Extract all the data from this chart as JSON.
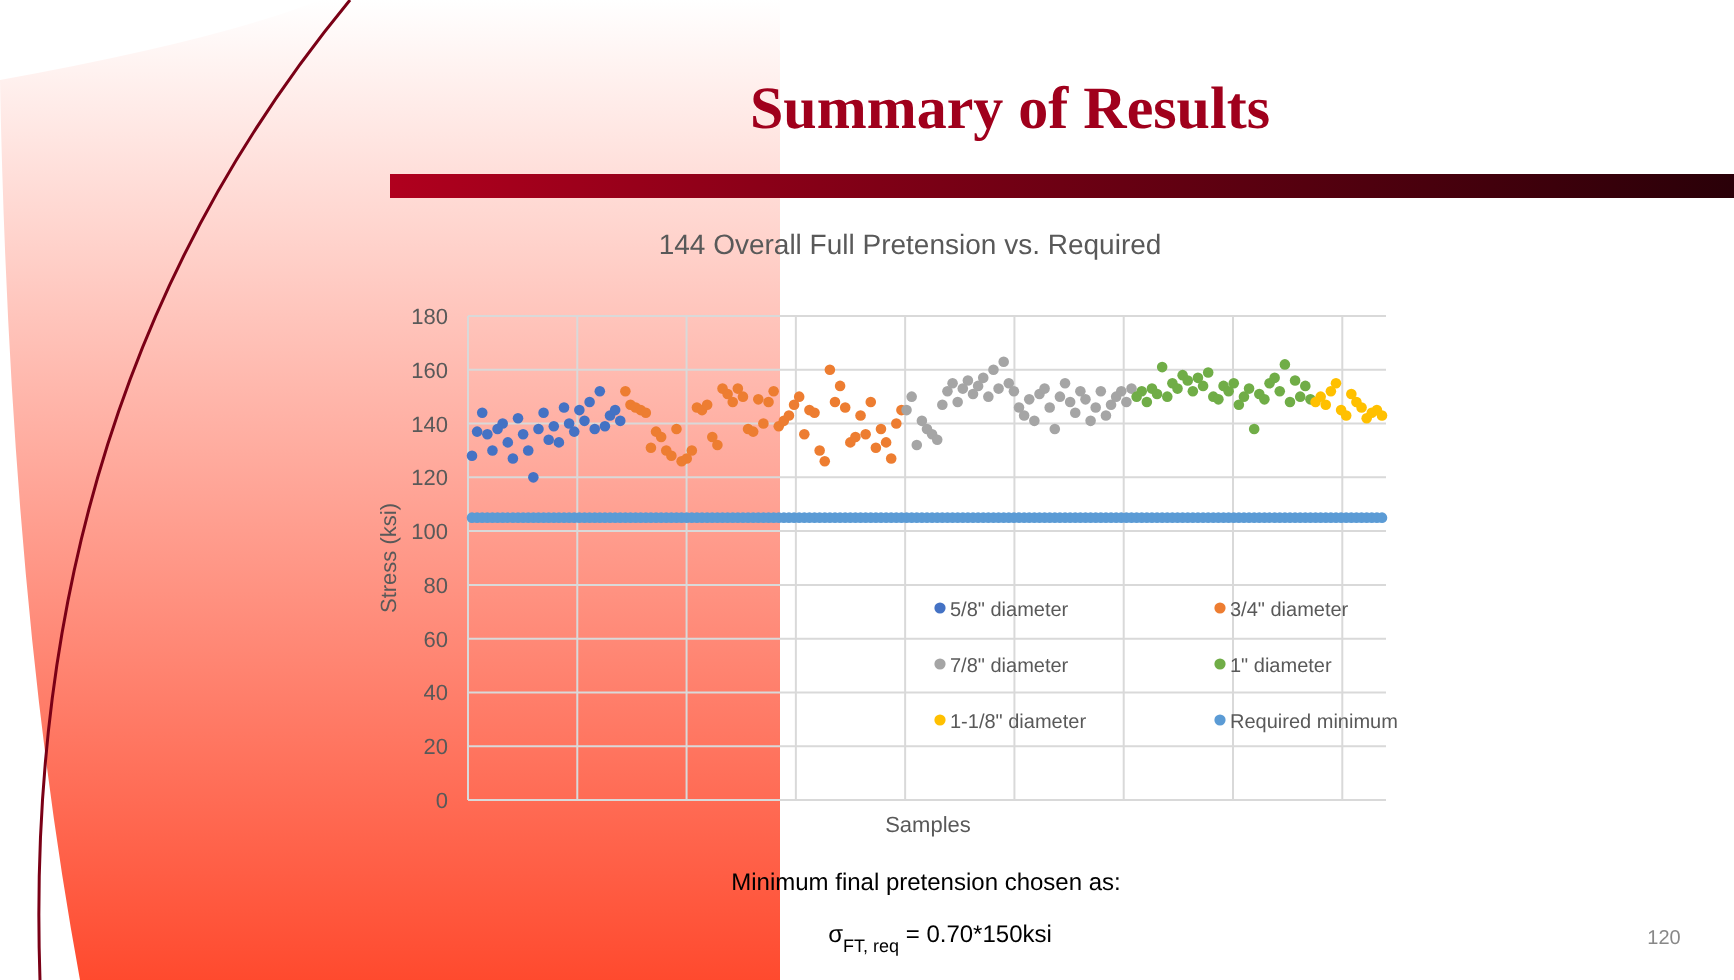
{
  "chart_data": {
    "type": "scatter",
    "title": "Summary of Results",
    "subtitle": "144 Overall Full Pretension vs. Required",
    "xlabel": "Samples",
    "ylabel": "Stress (ksi)",
    "annotations": [
      "Minimum final pretension chosen as:",
      "σ$_{FT, req}$ = 0.70*150ksi",
      "120"
    ],
    "categories": [
      null,
      null,
      null,
      null,
      null,
      null,
      null,
      null,
      null,
      null,
      null,
      null,
      null,
      null,
      null,
      null,
      null,
      null,
      null,
      null,
      null,
      null,
      null,
      null,
      null,
      null,
      null,
      null,
      null,
      null,
      null,
      null,
      null,
      null,
      null,
      null,
      null,
      null,
      null,
      null,
      null,
      null,
      null,
      null,
      null,
      null,
      null,
      null,
      null,
      null,
      null,
      null,
      null,
      null,
      null,
      null,
      null,
      null,
      null,
      null,
      null,
      null,
      null,
      null,
      null,
      null,
      null,
      null,
      null,
      null,
      null,
      null,
      null,
      null,
      null,
      null,
      null,
      null,
      null,
      null,
      null,
      null,
      null,
      null,
      null,
      null,
      null,
      null,
      null,
      null,
      null,
      null,
      null,
      null,
      null,
      null,
      null,
      null,
      null,
      null,
      null,
      null,
      null,
      null,
      null,
      null,
      null,
      null,
      null,
      null,
      null,
      null,
      null,
      null,
      null,
      null,
      null,
      null,
      null,
      null,
      null,
      null,
      null,
      null,
      null,
      null,
      null,
      null,
      null,
      null,
      null,
      null,
      null,
      null,
      null,
      null,
      null,
      null,
      null,
      null,
      null,
      null,
      null,
      null,
      null,
      null,
      null,
      null,
      null,
      null,
      null,
      null,
      null,
      null,
      null,
      null,
      null,
      null,
      null,
      null,
      null,
      null,
      null,
      null,
      null,
      null,
      null,
      null,
      null,
      null,
      null,
      null,
      null,
      null,
      null,
      null,
      null,
      null,
      null
    ],
    "ylim": [
      0,
      180
    ],
    "yticks": [
      0,
      20,
      40,
      60,
      80,
      100,
      120,
      140,
      160,
      180
    ],
    "grid": true,
    "legend": "bottom right",
    "marker": "circle",
    "tick_labels": "y",
    "series": [
      {
        "name": "5/8\" diameter",
        "color": "#4472c4",
        "values": [
          128,
          137,
          144,
          136,
          130,
          138,
          140,
          133,
          127,
          142,
          136,
          130,
          120,
          138,
          144,
          134,
          139,
          133,
          146,
          140,
          137,
          145,
          141,
          148,
          138,
          152,
          139,
          143,
          145,
          141,
          null,
          null,
          null,
          null,
          null,
          null,
          null,
          null,
          null,
          null,
          null,
          null,
          null,
          null,
          null,
          null,
          null,
          null,
          null,
          null,
          null,
          null,
          null,
          null,
          null,
          null,
          null,
          null,
          null,
          null,
          null,
          null,
          null,
          null,
          null,
          null,
          null,
          null,
          null,
          null,
          null,
          null,
          null,
          null,
          null,
          null,
          null,
          null,
          null,
          null,
          null,
          null,
          null,
          null,
          null,
          null,
          null,
          null,
          null,
          null,
          null,
          null,
          null,
          null,
          null,
          null,
          null,
          null,
          null,
          null,
          null,
          null,
          null,
          null,
          null,
          null,
          null,
          null,
          null,
          null,
          null,
          null,
          null,
          null,
          null,
          null,
          null,
          null,
          null,
          null,
          null,
          null,
          null,
          null,
          null,
          null,
          null,
          null,
          null,
          null,
          null,
          null,
          null,
          null,
          null,
          null,
          null,
          null,
          null,
          null,
          null,
          null,
          null,
          null,
          null,
          null,
          null,
          null,
          null,
          null,
          null,
          null,
          null,
          null,
          null,
          null,
          null,
          null,
          null,
          null,
          null,
          null,
          null,
          null,
          null,
          null,
          null,
          null,
          null,
          null,
          null,
          null,
          null,
          null,
          null,
          null,
          null,
          null,
          null
        ]
      },
      {
        "name": "3/4\" diameter",
        "color": "#ed7d31",
        "values": [
          null,
          null,
          null,
          null,
          null,
          null,
          null,
          null,
          null,
          null,
          null,
          null,
          null,
          null,
          null,
          null,
          null,
          null,
          null,
          null,
          null,
          null,
          null,
          null,
          null,
          null,
          null,
          null,
          null,
          null,
          152,
          147,
          146,
          145,
          144,
          131,
          137,
          135,
          130,
          128,
          138,
          126,
          127,
          130,
          146,
          145,
          147,
          135,
          132,
          153,
          151,
          148,
          153,
          150,
          138,
          137,
          149,
          140,
          148,
          152,
          139,
          141,
          143,
          147,
          150,
          136,
          145,
          144,
          130,
          126,
          160,
          148,
          154,
          146,
          133,
          135,
          143,
          136,
          148,
          131,
          138,
          133,
          127,
          140,
          145,
          null,
          null,
          null,
          null,
          null,
          null,
          null,
          null,
          null,
          null,
          null,
          null,
          null,
          null,
          null,
          null,
          null,
          null,
          null,
          null,
          null,
          null,
          null,
          null,
          null,
          null,
          null,
          null,
          null,
          null,
          null,
          null,
          null,
          null,
          null,
          null,
          null,
          null,
          null,
          null,
          null,
          null,
          null,
          null,
          null,
          null,
          null,
          null,
          null,
          null,
          null,
          null,
          null,
          null,
          null,
          null,
          null,
          null,
          null,
          null,
          null,
          null,
          null,
          null,
          null,
          null,
          null,
          null,
          null,
          null,
          null,
          null,
          null,
          null,
          null,
          null,
          null,
          null,
          null,
          null,
          null,
          null,
          null,
          null,
          null,
          null,
          null,
          null,
          null,
          null,
          null,
          null,
          null,
          null
        ]
      },
      {
        "name": "7/8\" diameter",
        "color": "#a5a5a5",
        "values": [
          null,
          null,
          null,
          null,
          null,
          null,
          null,
          null,
          null,
          null,
          null,
          null,
          null,
          null,
          null,
          null,
          null,
          null,
          null,
          null,
          null,
          null,
          null,
          null,
          null,
          null,
          null,
          null,
          null,
          null,
          null,
          null,
          null,
          null,
          null,
          null,
          null,
          null,
          null,
          null,
          null,
          null,
          null,
          null,
          null,
          null,
          null,
          null,
          null,
          null,
          null,
          null,
          null,
          null,
          null,
          null,
          null,
          null,
          null,
          null,
          null,
          null,
          null,
          null,
          null,
          null,
          null,
          null,
          null,
          null,
          null,
          null,
          null,
          null,
          null,
          null,
          null,
          null,
          null,
          null,
          null,
          null,
          null,
          null,
          null,
          145,
          150,
          132,
          141,
          138,
          136,
          134,
          147,
          152,
          155,
          148,
          153,
          156,
          151,
          154,
          157,
          150,
          160,
          153,
          163,
          155,
          152,
          146,
          143,
          149,
          141,
          151,
          153,
          146,
          138,
          150,
          155,
          148,
          144,
          152,
          149,
          141,
          146,
          152,
          143,
          147,
          150,
          152,
          148,
          153,
          null,
          null,
          null,
          null,
          null,
          null,
          null,
          null,
          null,
          null,
          null,
          null,
          null,
          null,
          null,
          null,
          null,
          null,
          null,
          null,
          null,
          null,
          null,
          null,
          null,
          null,
          null,
          null,
          null,
          null,
          null,
          null,
          null,
          null,
          null,
          null,
          null,
          null,
          null,
          null,
          null,
          null,
          null,
          null,
          null,
          null,
          null,
          null,
          null
        ]
      },
      {
        "name": "1\" diameter",
        "color": "#70ad47",
        "values": [
          null,
          null,
          null,
          null,
          null,
          null,
          null,
          null,
          null,
          null,
          null,
          null,
          null,
          null,
          null,
          null,
          null,
          null,
          null,
          null,
          null,
          null,
          null,
          null,
          null,
          null,
          null,
          null,
          null,
          null,
          null,
          null,
          null,
          null,
          null,
          null,
          null,
          null,
          null,
          null,
          null,
          null,
          null,
          null,
          null,
          null,
          null,
          null,
          null,
          null,
          null,
          null,
          null,
          null,
          null,
          null,
          null,
          null,
          null,
          null,
          null,
          null,
          null,
          null,
          null,
          null,
          null,
          null,
          null,
          null,
          null,
          null,
          null,
          null,
          null,
          null,
          null,
          null,
          null,
          null,
          null,
          null,
          null,
          null,
          null,
          null,
          null,
          null,
          null,
          null,
          null,
          null,
          null,
          null,
          null,
          null,
          null,
          null,
          null,
          null,
          null,
          null,
          null,
          null,
          null,
          null,
          null,
          null,
          null,
          null,
          null,
          null,
          null,
          null,
          null,
          null,
          null,
          null,
          null,
          null,
          null,
          null,
          null,
          null,
          null,
          null,
          null,
          null,
          null,
          null,
          150,
          152,
          148,
          153,
          151,
          161,
          150,
          155,
          153,
          158,
          156,
          152,
          157,
          154,
          159,
          150,
          149,
          154,
          152,
          155,
          147,
          150,
          153,
          138,
          151,
          149,
          155,
          157,
          152,
          162,
          148,
          156,
          150,
          154,
          149,
          null,
          null,
          null,
          null,
          null,
          null,
          null,
          null,
          null,
          null,
          null,
          null,
          null,
          null
        ]
      },
      {
        "name": "1-1/8\" diameter",
        "color": "#ffc000",
        "values": [
          null,
          null,
          null,
          null,
          null,
          null,
          null,
          null,
          null,
          null,
          null,
          null,
          null,
          null,
          null,
          null,
          null,
          null,
          null,
          null,
          null,
          null,
          null,
          null,
          null,
          null,
          null,
          null,
          null,
          null,
          null,
          null,
          null,
          null,
          null,
          null,
          null,
          null,
          null,
          null,
          null,
          null,
          null,
          null,
          null,
          null,
          null,
          null,
          null,
          null,
          null,
          null,
          null,
          null,
          null,
          null,
          null,
          null,
          null,
          null,
          null,
          null,
          null,
          null,
          null,
          null,
          null,
          null,
          null,
          null,
          null,
          null,
          null,
          null,
          null,
          null,
          null,
          null,
          null,
          null,
          null,
          null,
          null,
          null,
          null,
          null,
          null,
          null,
          null,
          null,
          null,
          null,
          null,
          null,
          null,
          null,
          null,
          null,
          null,
          null,
          null,
          null,
          null,
          null,
          null,
          null,
          null,
          null,
          null,
          null,
          null,
          null,
          null,
          null,
          null,
          null,
          null,
          null,
          null,
          null,
          null,
          null,
          null,
          null,
          null,
          null,
          null,
          null,
          null,
          null,
          null,
          null,
          null,
          null,
          null,
          null,
          null,
          null,
          null,
          null,
          null,
          null,
          null,
          null,
          null,
          null,
          null,
          null,
          null,
          null,
          null,
          null,
          null,
          null,
          null,
          null,
          null,
          null,
          null,
          null,
          null,
          null,
          null,
          null,
          null,
          148,
          150,
          147,
          152,
          155,
          145,
          143,
          151,
          148,
          146,
          142,
          144,
          145,
          143
        ]
      },
      {
        "name": "Required minimum",
        "color": "#5b9bd5",
        "values": [
          105,
          105,
          105,
          105,
          105,
          105,
          105,
          105,
          105,
          105,
          105,
          105,
          105,
          105,
          105,
          105,
          105,
          105,
          105,
          105,
          105,
          105,
          105,
          105,
          105,
          105,
          105,
          105,
          105,
          105,
          105,
          105,
          105,
          105,
          105,
          105,
          105,
          105,
          105,
          105,
          105,
          105,
          105,
          105,
          105,
          105,
          105,
          105,
          105,
          105,
          105,
          105,
          105,
          105,
          105,
          105,
          105,
          105,
          105,
          105,
          105,
          105,
          105,
          105,
          105,
          105,
          105,
          105,
          105,
          105,
          105,
          105,
          105,
          105,
          105,
          105,
          105,
          105,
          105,
          105,
          105,
          105,
          105,
          105,
          105,
          105,
          105,
          105,
          105,
          105,
          105,
          105,
          105,
          105,
          105,
          105,
          105,
          105,
          105,
          105,
          105,
          105,
          105,
          105,
          105,
          105,
          105,
          105,
          105,
          105,
          105,
          105,
          105,
          105,
          105,
          105,
          105,
          105,
          105,
          105,
          105,
          105,
          105,
          105,
          105,
          105,
          105,
          105,
          105,
          105,
          105,
          105,
          105,
          105,
          105,
          105,
          105,
          105,
          105,
          105,
          105,
          105,
          105,
          105,
          105,
          105,
          105,
          105,
          105,
          105,
          105,
          105,
          105,
          105,
          105,
          105,
          105,
          105,
          105,
          105,
          105,
          105,
          105,
          105,
          105,
          105,
          105,
          105,
          105,
          105,
          105,
          105,
          105,
          105,
          105,
          105,
          105,
          105,
          105
        ]
      }
    ]
  }
}
